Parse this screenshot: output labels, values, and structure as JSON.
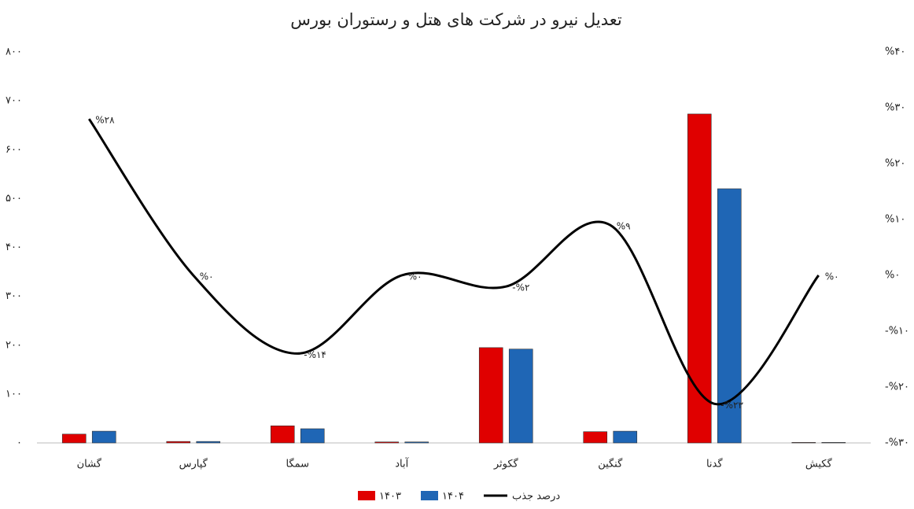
{
  "chart_data": {
    "type": "bar",
    "title": "تعدیل نیرو در شرکت های هتل و رستوران بورس",
    "categories": [
      "گشان",
      "گپارس",
      "سمگا",
      "آباد",
      "گکوثر",
      "گنگین",
      "گدنا",
      "گکیش"
    ],
    "series": [
      {
        "name": "۱۴۰۳",
        "color": "#e00000",
        "values": [
          18,
          3,
          35,
          2,
          195,
          23,
          673,
          1
        ]
      },
      {
        "name": "۱۴۰۴",
        "color": "#1f66b5",
        "values": [
          24,
          3,
          29,
          2,
          192,
          24,
          520,
          1
        ]
      },
      {
        "name": "درصد جذب",
        "type": "line",
        "axis": "y2",
        "color": "#000000",
        "values": [
          28,
          0,
          -14,
          0,
          -2,
          9,
          -23,
          0
        ],
        "value_labels": [
          "%۲۸",
          "%۰",
          "-%۱۴",
          "%۰",
          "-%۲",
          "%۹",
          "-%۲۳",
          "%۰"
        ]
      }
    ],
    "ylim": [
      0,
      800
    ],
    "yticks": [
      {
        "value": 0,
        "label": "۰"
      },
      {
        "value": 100,
        "label": "۱۰۰"
      },
      {
        "value": 200,
        "label": "۲۰۰"
      },
      {
        "value": 300,
        "label": "۳۰۰"
      },
      {
        "value": 400,
        "label": "۴۰۰"
      },
      {
        "value": 500,
        "label": "۵۰۰"
      },
      {
        "value": 600,
        "label": "۶۰۰"
      },
      {
        "value": 700,
        "label": "۷۰۰"
      },
      {
        "value": 800,
        "label": "۸۰۰"
      }
    ],
    "y2lim": [
      -30,
      40
    ],
    "y2ticks": [
      {
        "value": -30,
        "label": "-%۳۰"
      },
      {
        "value": -20,
        "label": "-%۲۰"
      },
      {
        "value": -10,
        "label": "-%۱۰"
      },
      {
        "value": 0,
        "label": "%۰"
      },
      {
        "value": 10,
        "label": "%۱۰"
      },
      {
        "value": 20,
        "label": "%۲۰"
      },
      {
        "value": 30,
        "label": "%۳۰"
      },
      {
        "value": 40,
        "label": "%۴۰"
      }
    ],
    "grid": false
  }
}
